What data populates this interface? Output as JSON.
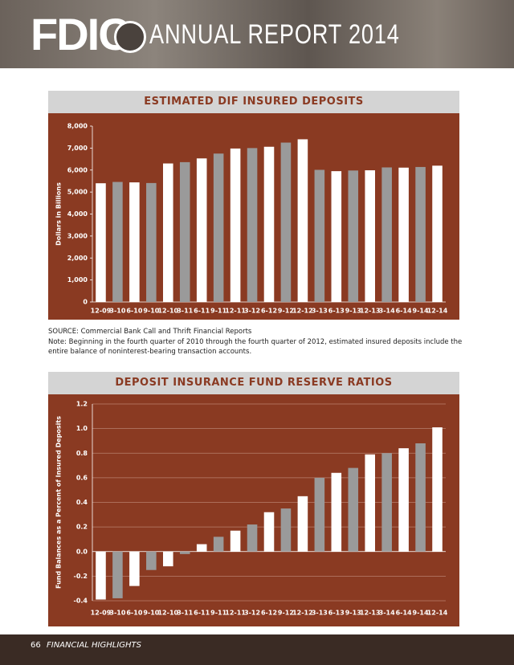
{
  "header": {
    "logo": "FDIC",
    "title": "ANNUAL REPORT 2014"
  },
  "chart_data": [
    {
      "type": "bar",
      "title": "ESTIMATED DIF INSURED DEPOSITS",
      "ylabel": "Dollars in Billions",
      "categories": [
        "12-09",
        "3-10",
        "6-10",
        "9-10",
        "12-10",
        "3-11",
        "6-11",
        "9-11",
        "12-11",
        "3-12",
        "6-12",
        "9-12",
        "12-12",
        "3-13",
        "6-13",
        "9-13",
        "12-13",
        "3-14",
        "6-14",
        "9-14",
        "12-14"
      ],
      "values": [
        5400,
        5460,
        5440,
        5410,
        6300,
        6360,
        6530,
        6750,
        6980,
        7000,
        7060,
        7250,
        7400,
        6010,
        5950,
        5980,
        5990,
        6120,
        6110,
        6140,
        6200
      ],
      "colors": [
        "#ffffff",
        "#9a9a9a"
      ],
      "ylim": [
        0,
        8000
      ],
      "yticks": [
        0,
        {
          "value": 1000,
          "label": "1,000"
        },
        {
          "value": 2000,
          "label": "2,000"
        },
        {
          "value": 3000,
          "label": "3,000"
        },
        {
          "value": 4000,
          "label": "4,000"
        },
        {
          "value": 5000,
          "label": "5,000"
        },
        {
          "value": 6000,
          "label": "6,000"
        },
        {
          "value": 7000,
          "label": "7,000"
        },
        {
          "value": 8000,
          "label": "8,000"
        }
      ],
      "grid": false
    },
    {
      "type": "bar",
      "title": "DEPOSIT INSURANCE FUND RESERVE RATIOS",
      "ylabel": "Fund Balances as a Percent of Insured Deposits",
      "categories": [
        "12-09",
        "3-10",
        "6-10",
        "9-10",
        "12-10",
        "3-11",
        "6-11",
        "9-11",
        "12-11",
        "3-12",
        "6-12",
        "9-12",
        "12-12",
        "3-13",
        "6-13",
        "9-13",
        "12-13",
        "3-14",
        "6-14",
        "9-14",
        "12-14"
      ],
      "values": [
        -0.39,
        -0.38,
        -0.28,
        -0.15,
        -0.12,
        -0.02,
        0.06,
        0.12,
        0.17,
        0.22,
        0.32,
        0.35,
        0.45,
        0.6,
        0.64,
        0.68,
        0.79,
        0.8,
        0.84,
        0.88,
        1.01
      ],
      "colors": [
        "#ffffff",
        "#9a9a9a"
      ],
      "ylim": [
        -0.4,
        1.2
      ],
      "yticks": [
        -0.4,
        -0.2,
        {
          "value": 0,
          "label": "0.0"
        },
        0.2,
        0.4,
        0.6,
        0.8,
        {
          "value": 1,
          "label": "1.0"
        },
        1.2
      ],
      "grid": true
    }
  ],
  "notes": {
    "source": "SOURCE: Commercial Bank Call and Thrift Financial Reports",
    "note": "Note: Beginning in the fourth quarter of 2010 through the fourth quarter of 2012, estimated insured deposits include the entire balance of noninterest-bearing transaction accounts."
  },
  "footer": {
    "page": "66",
    "section": "FINANCIAL HIGHLIGHTS"
  }
}
